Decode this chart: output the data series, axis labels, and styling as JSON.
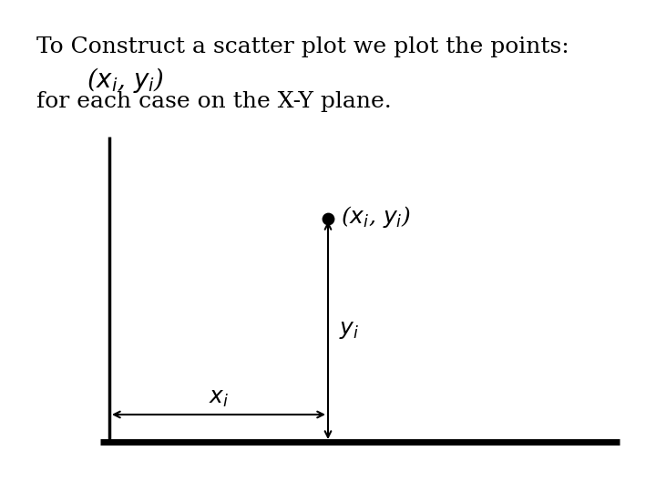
{
  "background_color": "#ffffff",
  "title_text": "To Construct a scatter plot we plot the points:",
  "subtitle_text": "($x_i$, $y_i$)",
  "body_text": "for each case on the X-Y plane.",
  "title_fontsize": 18,
  "subtitle_fontsize": 20,
  "body_fontsize": 18,
  "point_label": "($x_i$, $y_i$)",
  "point_label_fontsize": 18,
  "yi_label": "$y_i$",
  "xi_label": "$x_i$",
  "label_fontsize": 18,
  "line_color": "#000000",
  "y_axis_lw": 2.5,
  "x_axis_lw": 5.0,
  "arrow_lw": 1.5,
  "point_size": 80,
  "point_color": "#000000",
  "fig_width": 7.2,
  "fig_height": 5.4,
  "dpi": 100
}
